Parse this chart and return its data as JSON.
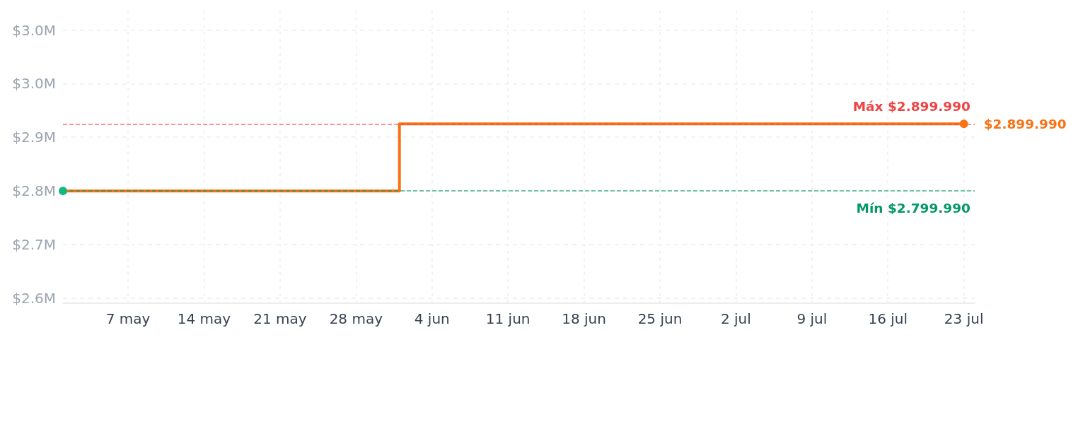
{
  "chart_data": {
    "type": "step",
    "xlim": [
      "--05-01",
      "--07-24"
    ],
    "xticks": [
      {
        "value": "--05-07",
        "label": "7 may"
      },
      {
        "value": "--05-14",
        "label": "14 may"
      },
      {
        "value": "--05-21",
        "label": "21 may"
      },
      {
        "value": "--05-28",
        "label": "28 may"
      },
      {
        "value": "--06-04",
        "label": "4 jun"
      },
      {
        "value": "--06-11",
        "label": "11 jun"
      },
      {
        "value": "--06-18",
        "label": "18 jun"
      },
      {
        "value": "--06-25",
        "label": "25 jun"
      },
      {
        "value": "--07-02",
        "label": "2 jul"
      },
      {
        "value": "--07-09",
        "label": "9 jul"
      },
      {
        "value": "--07-16",
        "label": "16 jul"
      },
      {
        "value": "--07-23",
        "label": "23 jul"
      }
    ],
    "ylim": [
      2633000,
      3069000
    ],
    "yticks": [
      {
        "value": 2640000,
        "label": "$2.6M"
      },
      {
        "value": 2720000,
        "label": "$2.7M"
      },
      {
        "value": 2800000,
        "label": "$2.8M"
      },
      {
        "value": 2880000,
        "label": "$2.9M"
      },
      {
        "value": 2960000,
        "label": "$3.0M"
      },
      {
        "value": 3040000,
        "label": "$3.0M"
      }
    ],
    "grid": true,
    "series": [
      {
        "color": "#f97316",
        "x": [
          "--05-01",
          "--06-01",
          "--07-23"
        ],
        "values": [
          2799990,
          2899990,
          2899990
        ]
      },
      {
        "type": "scatter",
        "color": "#10b981",
        "x": [
          "--05-01"
        ],
        "values": [
          2799990
        ]
      },
      {
        "type": "scatter",
        "color": "#f97316",
        "x": [
          "--07-23"
        ],
        "values": [
          2899990
        ],
        "value_labels": [
          "$2.899.990"
        ]
      }
    ],
    "ref_lines": [
      {
        "axis": "y",
        "value": 2899990,
        "label": "Máx $2.899.990",
        "color": "#ef4444",
        "line_style": "dashed"
      },
      {
        "axis": "y",
        "value": 2799990,
        "label": "Mín $2.799.990",
        "color": "#059669",
        "line_style": "dashed"
      }
    ]
  }
}
